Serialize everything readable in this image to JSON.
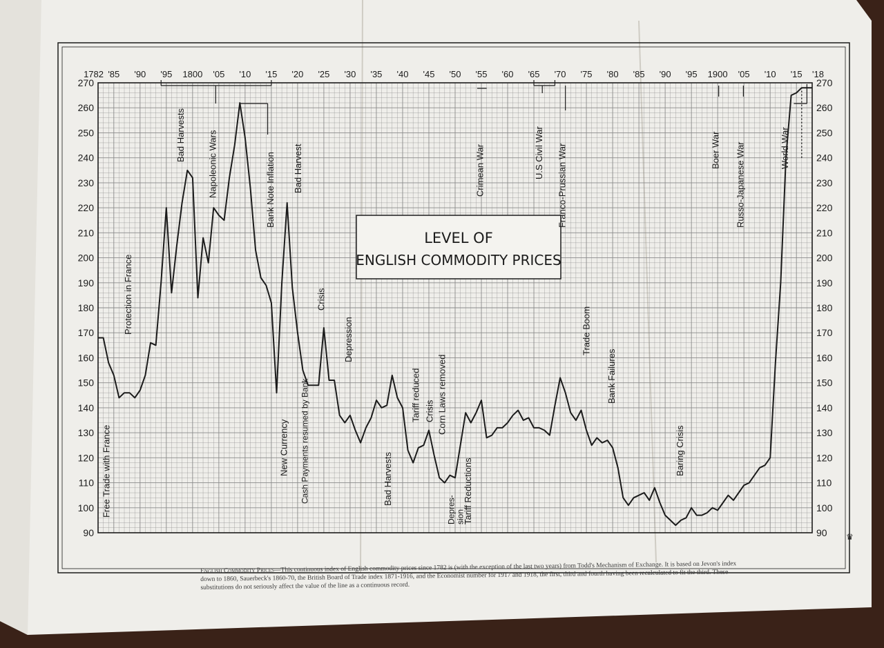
{
  "chart_data": {
    "type": "line",
    "title": "LEVEL OF ENGLISH COMMODITY PRICES",
    "ylim": [
      90,
      270
    ],
    "xlim": [
      1782,
      1918
    ],
    "grid": true,
    "y_ticks": [
      90,
      100,
      110,
      120,
      130,
      140,
      150,
      160,
      170,
      180,
      190,
      200,
      210,
      220,
      230,
      240,
      250,
      260,
      270
    ],
    "x_ticks": [
      {
        "year": 1782,
        "label": "1782"
      },
      {
        "year": 1785,
        "label": "'85"
      },
      {
        "year": 1790,
        "label": "'90"
      },
      {
        "year": 1795,
        "label": "'95"
      },
      {
        "year": 1800,
        "label": "1800"
      },
      {
        "year": 1805,
        "label": "'05"
      },
      {
        "year": 1810,
        "label": "'10"
      },
      {
        "year": 1815,
        "label": "'15"
      },
      {
        "year": 1820,
        "label": "'20"
      },
      {
        "year": 1825,
        "label": "'25"
      },
      {
        "year": 1830,
        "label": "'30"
      },
      {
        "year": 1835,
        "label": "'35"
      },
      {
        "year": 1840,
        "label": "'40"
      },
      {
        "year": 1845,
        "label": "'45"
      },
      {
        "year": 1850,
        "label": "'50"
      },
      {
        "year": 1855,
        "label": "'55"
      },
      {
        "year": 1860,
        "label": "'60"
      },
      {
        "year": 1865,
        "label": "'65"
      },
      {
        "year": 1870,
        "label": "'70"
      },
      {
        "year": 1875,
        "label": "'75"
      },
      {
        "year": 1880,
        "label": "'80"
      },
      {
        "year": 1885,
        "label": "'85"
      },
      {
        "year": 1890,
        "label": "'90"
      },
      {
        "year": 1895,
        "label": "'95"
      },
      {
        "year": 1900,
        "label": "1900"
      },
      {
        "year": 1905,
        "label": "'05"
      },
      {
        "year": 1910,
        "label": "'10"
      },
      {
        "year": 1915,
        "label": "'15"
      },
      {
        "year": 1918,
        "label": "'18"
      }
    ],
    "series": [
      {
        "x": [
          1782,
          1783,
          1784,
          1785,
          1786,
          1787,
          1788,
          1789,
          1790,
          1791,
          1792,
          1793,
          1794,
          1795,
          1796,
          1797,
          1798,
          1799,
          1800,
          1801,
          1802,
          1803,
          1804,
          1805,
          1806,
          1807,
          1808,
          1809,
          1810,
          1811,
          1812,
          1813,
          1814,
          1815,
          1816,
          1817,
          1818,
          1819,
          1820,
          1821,
          1822,
          1823,
          1824,
          1825,
          1826,
          1827,
          1828,
          1829,
          1830,
          1831,
          1832,
          1833,
          1834,
          1835,
          1836,
          1837,
          1838,
          1839,
          1840,
          1841,
          1842,
          1843,
          1844,
          1845,
          1846,
          1847,
          1848,
          1849,
          1850,
          1851,
          1852,
          1853,
          1854,
          1855,
          1856,
          1857,
          1858,
          1859,
          1860,
          1861,
          1862,
          1863,
          1864,
          1865,
          1866,
          1867,
          1868,
          1869,
          1870,
          1871,
          1872,
          1873,
          1874,
          1875,
          1876,
          1877,
          1878,
          1879,
          1880,
          1881,
          1882,
          1883,
          1884,
          1885,
          1886,
          1887,
          1888,
          1889,
          1890,
          1891,
          1892,
          1893,
          1894,
          1895,
          1896,
          1897,
          1898,
          1899,
          1900,
          1901,
          1902,
          1903,
          1904,
          1905,
          1906,
          1907,
          1908,
          1909,
          1910,
          1911,
          1912,
          1913,
          1914,
          1915,
          1916,
          1917,
          1918
        ],
        "values": [
          168,
          168,
          158,
          153,
          144,
          146,
          146,
          144,
          147,
          153,
          166,
          165,
          190,
          220,
          186,
          205,
          222,
          235,
          232,
          184,
          208,
          198,
          220,
          217,
          215,
          232,
          245,
          262,
          248,
          228,
          203,
          192,
          189,
          182,
          146,
          190,
          222,
          188,
          170,
          155,
          149,
          149,
          149,
          172,
          151,
          151,
          137,
          134,
          137,
          131,
          126,
          132,
          136,
          143,
          140,
          141,
          153,
          144,
          140,
          123,
          118,
          124,
          125,
          131,
          121,
          112,
          110,
          113,
          112,
          125,
          138,
          134,
          138,
          143,
          128,
          129,
          132,
          132,
          134,
          137,
          139,
          135,
          136,
          132,
          132,
          131,
          129,
          141,
          152,
          146,
          138,
          135,
          139,
          131,
          125,
          128,
          126,
          127,
          124,
          116,
          104,
          101,
          104,
          105,
          106,
          103,
          108,
          102,
          97,
          95,
          93,
          95,
          96,
          100,
          97,
          97,
          98,
          100,
          99,
          102,
          105,
          103,
          106,
          109,
          110,
          113,
          116,
          117,
          120,
          158,
          190,
          240,
          265,
          266,
          268,
          268,
          268
        ]
      }
    ],
    "annotations": [
      "Free Trade with France",
      "Protection in France",
      "Bad Harvests",
      "Napoleonic Wars",
      "Bank Note Inflation",
      "New Currency",
      "Bad Harvest",
      "Cash Payments resumed by Bank",
      "Crisis",
      "Depression",
      "Bad Harvests",
      "Tariff reduced",
      "Crisis",
      "Corn Laws removed",
      "Depression",
      "Tariff Reductions",
      "Crimean War",
      "U.S Civil War",
      "Franco-Prussian War",
      "Trade Boom",
      "Bank Failures",
      "Baring Crisis",
      "Boer War",
      "Russo-Japanese War",
      "World War"
    ]
  },
  "caption": {
    "head": "English Commodity Prices",
    "body": "—This continuous index of English commodity prices since 1782 is (with the exception of the last two years) from Todd's Mechanism of Exchange. It is based on Jevon's index down to 1860, Sauerbeck's 1860-70, the British Board of Trade index 1871-1916, and the Economist number for 1917 and 1918, the first, third and fourth having been recalculated to fit the third. These substitutions do not seriously affect the value of the line as a continuous record."
  },
  "colors": {
    "paper": "#efeeea",
    "grid": "#8a8a8a",
    "ink": "#1b1b1b",
    "background": "#3a2218"
  }
}
